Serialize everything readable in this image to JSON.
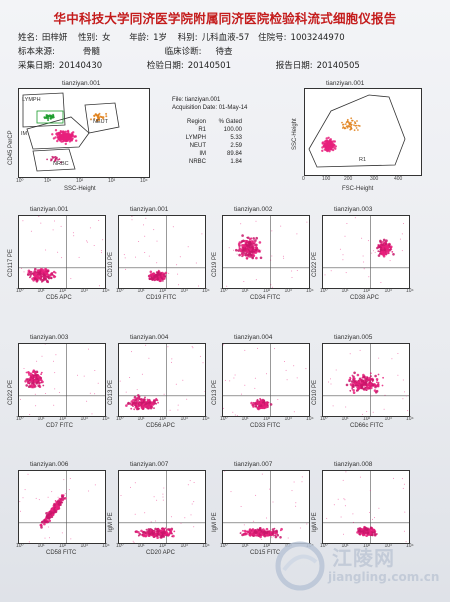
{
  "report": {
    "title": "华中科技大学同济医学院附属同济医院检验科流式细胞仪报告",
    "row1": [
      {
        "label": "姓名:",
        "value": "田梓妍"
      },
      {
        "label": "性别:",
        "value": "女"
      },
      {
        "label": "年龄:",
        "value": "1岁"
      },
      {
        "label": "科别:",
        "value": "儿科血液-57"
      },
      {
        "label": "住院号:",
        "value": "1003244970"
      }
    ],
    "row2": [
      {
        "label": "标本来源:",
        "value": "骨髓"
      },
      {
        "label": "临床诊断:",
        "value": "待查"
      }
    ],
    "row3": [
      {
        "label": "采集日期:",
        "value": "20140430"
      },
      {
        "label": "检验日期:",
        "value": "20140501"
      },
      {
        "label": "报告日期:",
        "value": "20140505"
      }
    ]
  },
  "overview": {
    "plot1": {
      "title": "tianziyan.001",
      "xlabel": "SSC-Height",
      "ylabel": "CD45 PerCP",
      "gates": [
        "LYMPH",
        "NEUT",
        "IM",
        "NRBC"
      ]
    },
    "stats": {
      "file": "File: tianziyan.001",
      "acq": "Acquisition Date: 01-May-14",
      "header": [
        "Region",
        "% Gated"
      ],
      "rows": [
        [
          "R1",
          "100.00"
        ],
        [
          "LYMPH",
          "5.33"
        ],
        [
          "NEUT",
          "2.59"
        ],
        [
          "IM",
          "89.84"
        ],
        [
          "NRBC",
          "1.84"
        ]
      ]
    },
    "plot2": {
      "title": "tianziyan.001",
      "xlabel": "FSC-Height",
      "ylabel": "SSC-Height",
      "gate": "R1"
    }
  },
  "plots": [
    {
      "title": "tianziyan.001",
      "x": "CD5 APC",
      "y": "CD117 PE",
      "shape": "bl-wide"
    },
    {
      "title": "tianziyan.001",
      "x": "CD19 FITC",
      "y": "CD10 PE",
      "shape": "bl-small"
    },
    {
      "title": "tianziyan.002",
      "x": "CD34 FITC",
      "y": "CD19 PE",
      "shape": "ul"
    },
    {
      "title": "tianziyan.003",
      "x": "CD38 APC",
      "y": "CD22 PE",
      "shape": "ur"
    },
    {
      "title": "tianziyan.003",
      "x": "CD7 FITC",
      "y": "CD22 PE",
      "shape": "ml"
    },
    {
      "title": "tianziyan.004",
      "x": "CD56 APC",
      "y": "CD13 PE",
      "shape": "bl-wide"
    },
    {
      "title": "tianziyan.004",
      "x": "CD33 FITC",
      "y": "CD13 PE",
      "shape": "bl-small"
    },
    {
      "title": "tianziyan.005",
      "x": "CD66c FITC",
      "y": "CD10 PE",
      "shape": "mid-wide"
    },
    {
      "title": "tianziyan.006",
      "x": "CD58 FITC",
      "y": "",
      "shape": "diag"
    },
    {
      "title": "tianziyan.007",
      "x": "CD20 APC",
      "y": "IgM PE",
      "shape": "bottom-wide"
    },
    {
      "title": "tianziyan.007",
      "x": "CD15 FITC",
      "y": "IgM PE",
      "shape": "bottom-wide"
    },
    {
      "title": "tianziyan.008",
      "x": "",
      "y": "IgM PE",
      "shape": "bottom-mid"
    }
  ],
  "watermark": {
    "name": "江陵网",
    "url": "jiangling.com.cn"
  },
  "colors": {
    "title_red": "#c41c1c",
    "dots": "#e8207d",
    "dots_dark": "#c8166a",
    "accent_orange": "#e0801a",
    "green_gate": "#1a9b2a"
  }
}
